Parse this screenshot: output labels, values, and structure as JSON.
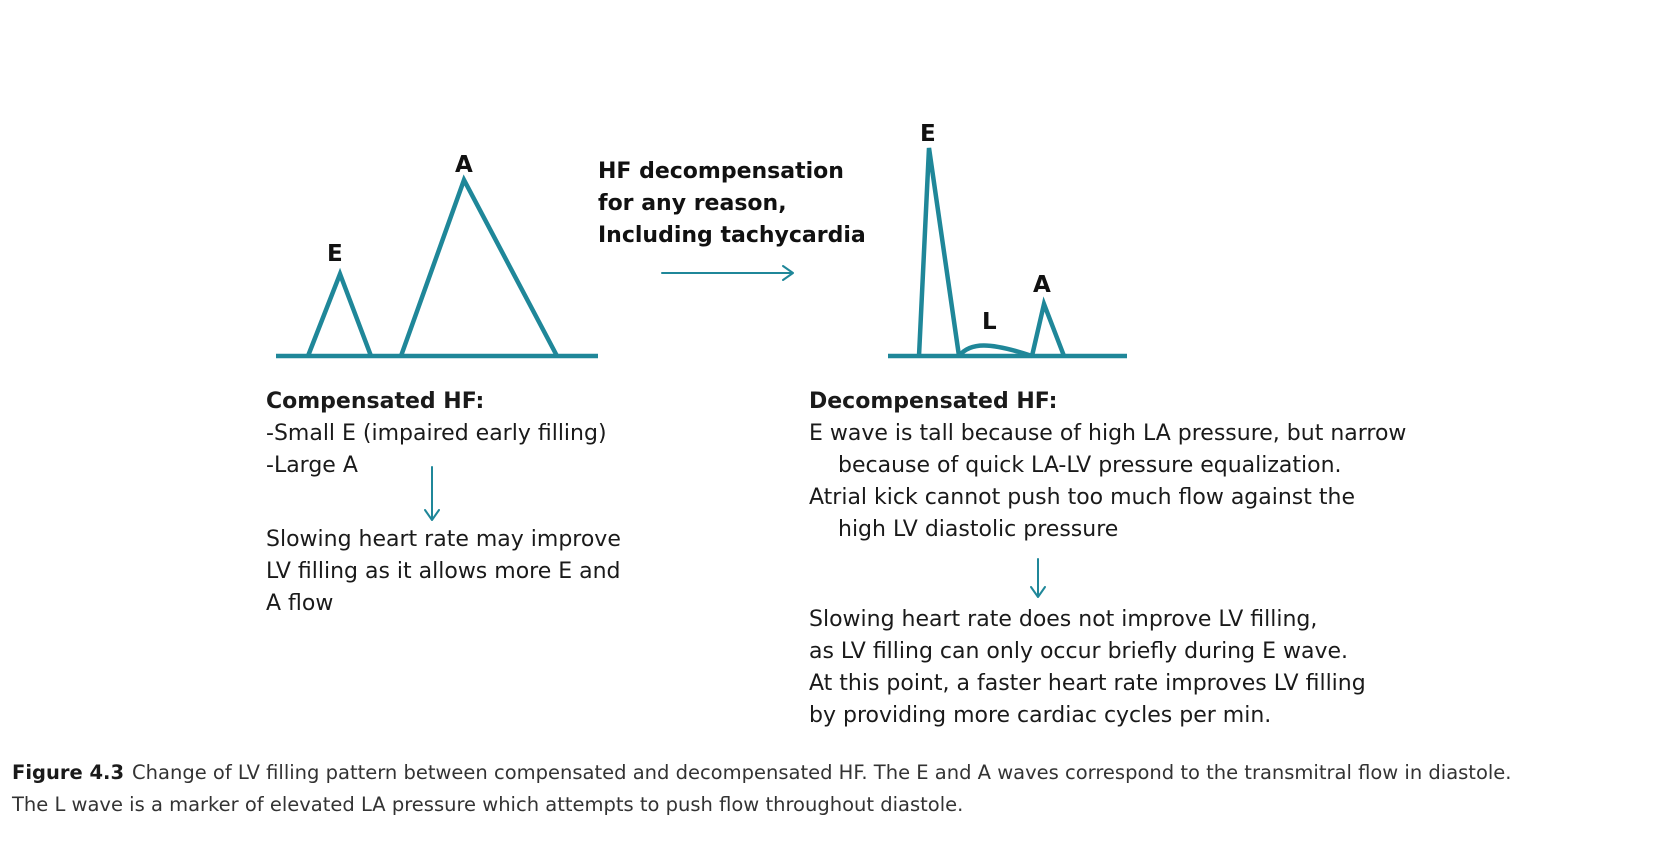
{
  "colors": {
    "wave": "#1f8799",
    "arrow": "#1f8799",
    "text": "#1a1a1a"
  },
  "compensated": {
    "labels": {
      "E": "E",
      "A": "A"
    },
    "heading": "Compensated HF:",
    "lines": [
      "-Small E (impaired early filling)",
      "-Large A"
    ],
    "result_lines": [
      "Slowing heart rate may improve",
      "LV filling as it allows more E and",
      "A flow"
    ]
  },
  "transition": {
    "lines": [
      "HF decompensation",
      "for any reason,",
      "Including tachycardia"
    ]
  },
  "decompensated": {
    "labels": {
      "E": "E",
      "L": "L",
      "A": "A"
    },
    "heading": "Decompensated HF:",
    "lines": [
      "E wave is tall because of high LA pressure, but narrow",
      "because of quick LA-LV pressure equalization.",
      "Atrial kick cannot  push too much flow against the",
      "high LV diastolic pressure"
    ],
    "result_lines": [
      "Slowing heart rate does not improve LV filling,",
      "as LV filling can only occur briefly during E wave.",
      "At this point, a faster heart rate improves LV filling",
      "by providing more cardiac cycles per min."
    ]
  },
  "caption": {
    "label": "Figure 4.3",
    "line1": "Change of LV filling pattern between compensated and decompensated HF. The E and A waves correspond to the transmitral flow in diastole.",
    "line2": "The L wave is a marker of elevated LA pressure which attempts to push flow throughout diastole."
  }
}
